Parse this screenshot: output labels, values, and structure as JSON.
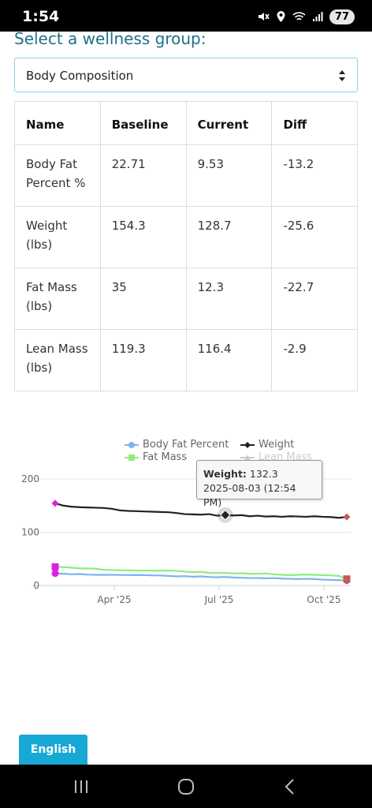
{
  "status": {
    "time": "1:54",
    "battery": "77"
  },
  "heading": "Select a wellness group:",
  "group_select": {
    "value": "Body Composition"
  },
  "table": {
    "headers": [
      "Name",
      "Baseline",
      "Current",
      "Diff"
    ],
    "rows": [
      {
        "name_line1": "Body Fat",
        "name_line2": "Percent %",
        "baseline": "22.71",
        "current": "9.53",
        "diff": "-13.2"
      },
      {
        "name_line1": "Weight",
        "name_line2": "(lbs)",
        "baseline": "154.3",
        "current": "128.7",
        "diff": "-25.6"
      },
      {
        "name_line1": "Fat Mass",
        "name_line2": "(lbs)",
        "baseline": "35",
        "current": "12.3",
        "diff": "-22.7"
      },
      {
        "name_line1": "Lean Mass",
        "name_line2": "(lbs)",
        "baseline": "119.3",
        "current": "116.4",
        "diff": "-2.9"
      }
    ]
  },
  "chart_data": {
    "type": "line",
    "x_ticks": [
      "Apr '25",
      "Jul '25",
      "Oct '25"
    ],
    "y_ticks": [
      "0",
      "100",
      "200"
    ],
    "ylim": [
      0,
      200
    ],
    "legend_placement": "top",
    "series": [
      {
        "name": "Body Fat Percent",
        "color": "#7cb5ec",
        "marker": "circle",
        "values": [
          22.7,
          22,
          21,
          21.5,
          20.5,
          20,
          20,
          20,
          19.8,
          19.5,
          19.5,
          19.5,
          19,
          18.8,
          18,
          17,
          17.5,
          16.5,
          17,
          16,
          15.5,
          16,
          15,
          14.5,
          14,
          14,
          13.5,
          14,
          13,
          12.5,
          12,
          12.5,
          12,
          11,
          10.5,
          10,
          9.5
        ]
      },
      {
        "name": "Weight",
        "color": "#222222",
        "marker": "diamond",
        "values": [
          154.3,
          150,
          148,
          147,
          146.5,
          146,
          145.5,
          144,
          141,
          140,
          139.5,
          139,
          138.5,
          138,
          137.5,
          136,
          134,
          133.5,
          133,
          134,
          131,
          132.3,
          131.5,
          132,
          130,
          131,
          129.5,
          130,
          129,
          130,
          129.5,
          129,
          130,
          129,
          128.5,
          127,
          128.7
        ]
      },
      {
        "name": "Fat Mass",
        "color": "#90ed7d",
        "marker": "square",
        "values": [
          35,
          34.5,
          33.5,
          32,
          32,
          31.5,
          29.5,
          29,
          28.5,
          28.5,
          28,
          28,
          28,
          28,
          28,
          27.5,
          26,
          25,
          25.5,
          24,
          23.5,
          24,
          22.5,
          23,
          22,
          22,
          22.5,
          21,
          20,
          19.5,
          20,
          20.5,
          20,
          19.5,
          19,
          18,
          12.3
        ]
      },
      {
        "name": "Lean Mass",
        "color": "#bbbbbb",
        "marker": "triangle",
        "hidden": true,
        "values": []
      }
    ],
    "tooltip": {
      "series": "Weight:",
      "value": "132.3",
      "date": "2025-08-03 (12:54 PM)"
    }
  },
  "language_button": "English"
}
